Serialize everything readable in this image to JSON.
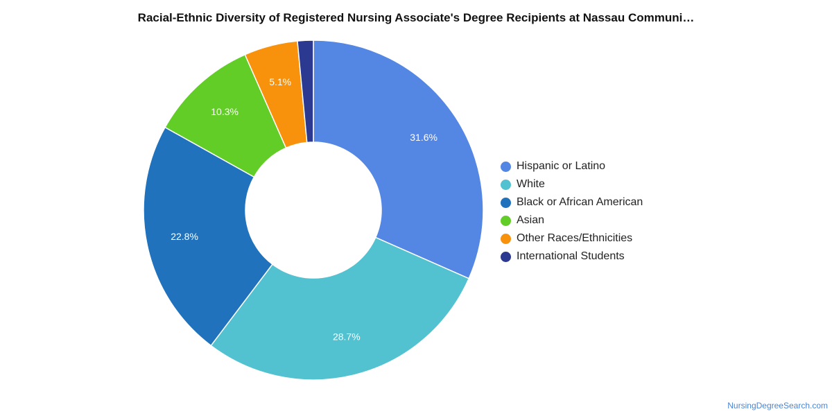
{
  "chart_data": {
    "type": "pie",
    "title": "Racial-Ethnic Diversity of Registered Nursing Associate's Degree Recipients at Nassau Communi…",
    "donut": true,
    "legend_position": "right",
    "slices": [
      {
        "name": "Hispanic or Latino",
        "value": 31.6,
        "label": "31.6%",
        "color": "#5486e3"
      },
      {
        "name": "White",
        "value": 28.7,
        "label": "28.7%",
        "color": "#52c1d0"
      },
      {
        "name": "Black or African American",
        "value": 22.8,
        "label": "22.8%",
        "color": "#1f72bb"
      },
      {
        "name": "Asian",
        "value": 10.3,
        "label": "10.3%",
        "color": "#62cd26"
      },
      {
        "name": "Other Races/Ethnicities",
        "value": 5.1,
        "label": "5.1%",
        "color": "#f8920c"
      },
      {
        "name": "International Students",
        "value": 1.5,
        "label": "",
        "color": "#2b3990"
      }
    ]
  },
  "source": "NursingDegreeSearch.com"
}
